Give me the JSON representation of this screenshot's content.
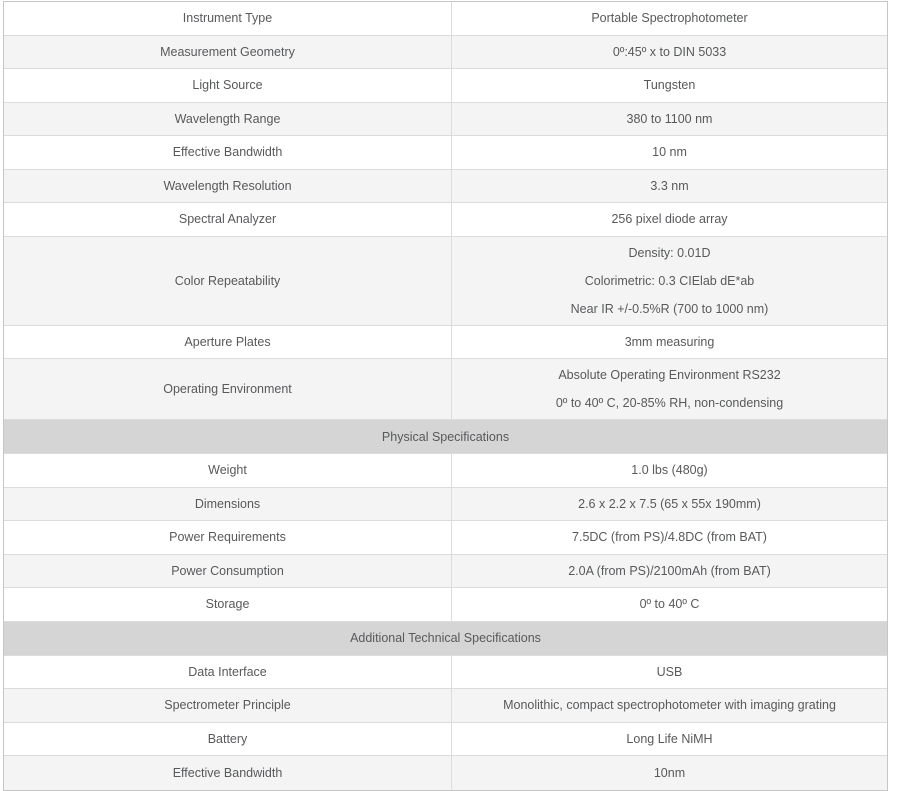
{
  "colors": {
    "row_bg": "#ffffff",
    "row_alt_bg": "#f4f4f4",
    "section_header_bg": "#d5d5d5",
    "border": "#dcdcdc",
    "text": "#58595b"
  },
  "sections": [
    {
      "header": null,
      "rows": [
        {
          "label": "Instrument Type",
          "values": [
            "Portable Spectrophotometer"
          ]
        },
        {
          "label": "Measurement Geometry",
          "values": [
            "0º:45º x to DIN 5033"
          ]
        },
        {
          "label": "Light Source",
          "values": [
            "Tungsten"
          ]
        },
        {
          "label": "Wavelength Range",
          "values": [
            "380 to 1100 nm"
          ]
        },
        {
          "label": "Effective Bandwidth",
          "values": [
            "10 nm"
          ]
        },
        {
          "label": "Wavelength Resolution",
          "values": [
            "3.3 nm"
          ]
        },
        {
          "label": "Spectral Analyzer",
          "values": [
            "256 pixel diode array"
          ]
        },
        {
          "label": "Color Repeatability",
          "values": [
            "Density: 0.01D",
            "Colorimetric: 0.3 CIElab dE*ab",
            "Near IR +/-0.5%R (700 to 1000 nm)"
          ]
        },
        {
          "label": "Aperture Plates",
          "values": [
            "3mm measuring"
          ]
        },
        {
          "label": "Operating Environment",
          "values": [
            "Absolute Operating Environment RS232",
            "0º to 40º C, 20-85% RH, non-condensing"
          ]
        }
      ]
    },
    {
      "header": "Physical Specifications",
      "rows": [
        {
          "label": "Weight",
          "values": [
            "1.0 lbs (480g)"
          ]
        },
        {
          "label": "Dimensions",
          "values": [
            "2.6 x 2.2 x 7.5 (65 x 55x 190mm)"
          ]
        },
        {
          "label": "Power Requirements",
          "values": [
            "7.5DC (from PS)/4.8DC (from BAT)"
          ]
        },
        {
          "label": "Power Consumption",
          "values": [
            "2.0A (from PS)/2100mAh (from BAT)"
          ]
        },
        {
          "label": "Storage",
          "values": [
            "0º to 40º C"
          ]
        }
      ]
    },
    {
      "header": "Additional Technical Specifications",
      "rows": [
        {
          "label": "Data Interface",
          "values": [
            "USB"
          ]
        },
        {
          "label": "Spectrometer Principle",
          "values": [
            "Monolithic, compact spectrophotometer with imaging grating"
          ]
        },
        {
          "label": "Battery",
          "values": [
            "Long Life NiMH"
          ]
        },
        {
          "label": "Effective Bandwidth",
          "values": [
            "10nm"
          ]
        }
      ]
    }
  ]
}
